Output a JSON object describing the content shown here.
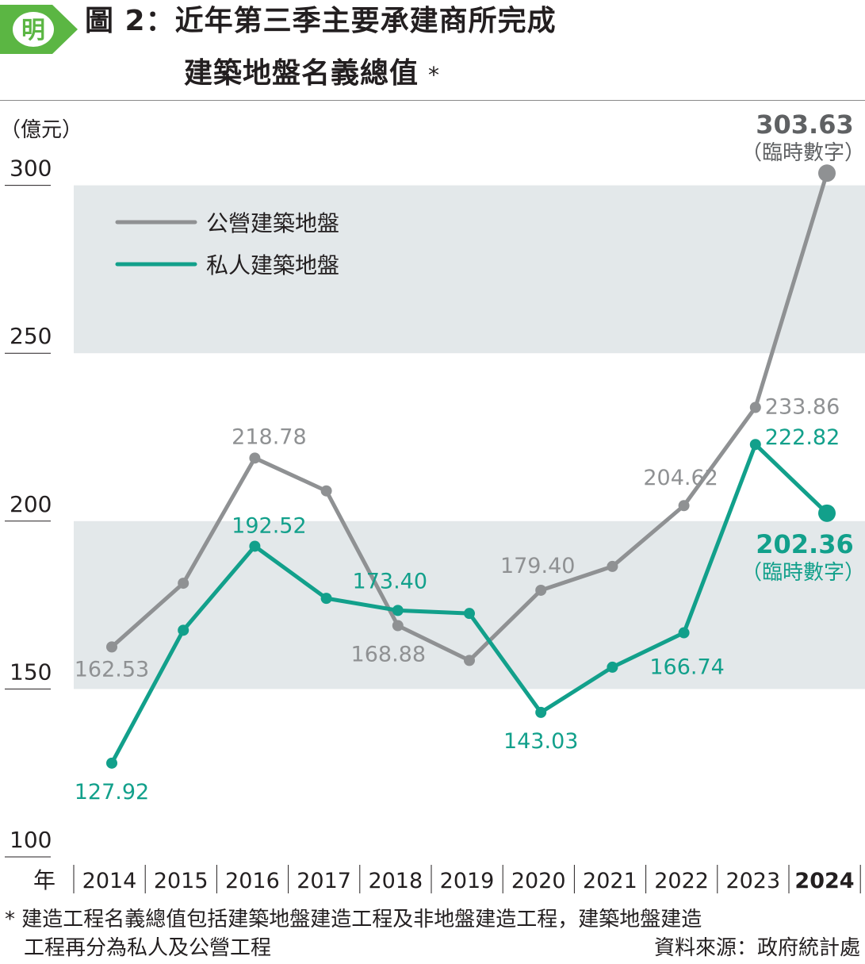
{
  "header": {
    "logo_text": "明",
    "title_line1": "圖 2：近年第三季主要承建商所完成",
    "title_line2": "建築地盤名義總值",
    "title_mark": "*"
  },
  "colors": {
    "public": "#8f9193",
    "private": "#12a08b",
    "band": "#e3e8ea",
    "logo_green": "#5bb643",
    "text": "#231f20"
  },
  "chart_data": {
    "type": "line",
    "unit_label": "（億元）",
    "xlabel": "年",
    "categories": [
      "2014",
      "2015",
      "2016",
      "2017",
      "2018",
      "2019",
      "2020",
      "2021",
      "2022",
      "2023",
      "2024"
    ],
    "highlight_category": "2024",
    "ylim": [
      100,
      300
    ],
    "yticks": [
      300,
      250,
      200,
      150,
      100
    ],
    "bands": [
      [
        250,
        300
      ],
      [
        150,
        200
      ]
    ],
    "legend_position": "top-left",
    "series": [
      {
        "name": "公營建築地盤",
        "color": "#8f9193",
        "values": [
          162.53,
          181.5,
          218.78,
          209.0,
          168.88,
          158.5,
          179.4,
          186.5,
          204.62,
          233.86,
          303.63
        ],
        "labels": [
          "162.53",
          "",
          "218.78",
          "",
          "168.88",
          "",
          "179.40",
          "",
          "204.62",
          "233.86",
          "303.63"
        ],
        "last_note": "（臨時數字）"
      },
      {
        "name": "私人建築地盤",
        "color": "#12a08b",
        "values": [
          127.92,
          167.5,
          192.52,
          177.0,
          173.4,
          172.5,
          143.03,
          156.5,
          166.74,
          222.82,
          202.36
        ],
        "labels": [
          "127.92",
          "",
          "192.52",
          "",
          "173.40",
          "",
          "143.03",
          "",
          "166.74",
          "222.82",
          "202.36"
        ],
        "last_note": "（臨時數字）"
      }
    ]
  },
  "footer": {
    "note_line1": "* 建造工程名義總值包括建築地盤建造工程及非地盤建造工程，建築地盤建造",
    "note_line2": "工程再分為私人及公營工程",
    "source": "資料來源：政府統計處"
  }
}
